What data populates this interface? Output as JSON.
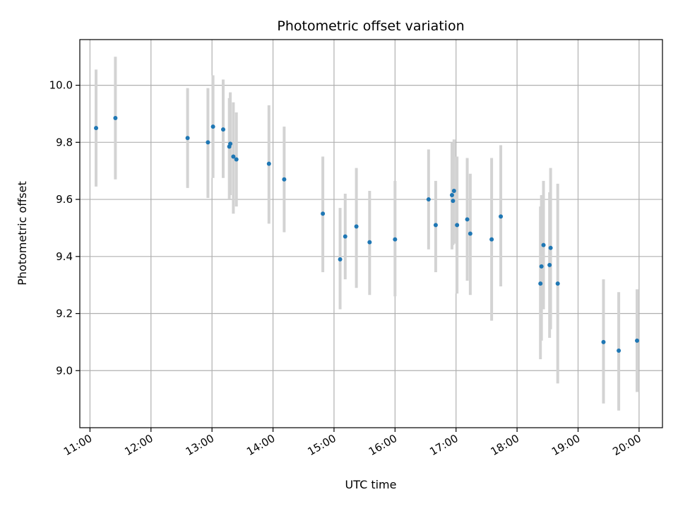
{
  "chart_data": {
    "type": "scatter",
    "title": "Photometric offset variation",
    "xlabel": "UTC time",
    "ylabel": "Photometric offset",
    "xlim": [
      "10:50",
      "20:23"
    ],
    "ylim": [
      8.8,
      10.16
    ],
    "grid": true,
    "x_ticks": [
      "11:00",
      "12:00",
      "13:00",
      "14:00",
      "15:00",
      "16:00",
      "17:00",
      "18:00",
      "19:00",
      "20:00"
    ],
    "y_ticks": [
      "9.0",
      "9.2",
      "9.4",
      "9.6",
      "9.8",
      "10.0"
    ],
    "colors": {
      "point": "#1f77b4",
      "errorbar": "#d3d3d3",
      "grid": "#b0b0b0"
    },
    "points": [
      {
        "x": "11:06",
        "y": 9.85,
        "err_low": 9.645,
        "err_high": 10.055
      },
      {
        "x": "11:25",
        "y": 9.885,
        "err_low": 9.67,
        "err_high": 10.1
      },
      {
        "x": "12:36",
        "y": 9.815,
        "err_low": 9.64,
        "err_high": 9.99
      },
      {
        "x": "12:56",
        "y": 9.8,
        "err_low": 9.605,
        "err_high": 9.99
      },
      {
        "x": "13:01",
        "y": 9.855,
        "err_low": 9.675,
        "err_high": 10.035
      },
      {
        "x": "13:11",
        "y": 9.845,
        "err_low": 9.675,
        "err_high": 10.02
      },
      {
        "x": "13:17",
        "y": 9.785,
        "err_low": 9.6,
        "err_high": 9.955
      },
      {
        "x": "13:18",
        "y": 9.795,
        "err_low": 9.615,
        "err_high": 9.975
      },
      {
        "x": "13:21",
        "y": 9.75,
        "err_low": 9.55,
        "err_high": 9.94
      },
      {
        "x": "13:24",
        "y": 9.74,
        "err_low": 9.575,
        "err_high": 9.905
      },
      {
        "x": "13:56",
        "y": 9.725,
        "err_low": 9.515,
        "err_high": 9.93
      },
      {
        "x": "14:11",
        "y": 9.67,
        "err_low": 9.485,
        "err_high": 9.855
      },
      {
        "x": "14:49",
        "y": 9.55,
        "err_low": 9.345,
        "err_high": 9.75
      },
      {
        "x": "15:06",
        "y": 9.39,
        "err_low": 9.215,
        "err_high": 9.57
      },
      {
        "x": "15:11",
        "y": 9.47,
        "err_low": 9.32,
        "err_high": 9.62
      },
      {
        "x": "15:22",
        "y": 9.505,
        "err_low": 9.29,
        "err_high": 9.71
      },
      {
        "x": "15:35",
        "y": 9.45,
        "err_low": 9.265,
        "err_high": 9.63
      },
      {
        "x": "16:00",
        "y": 9.46,
        "err_low": 9.26,
        "err_high": 9.665
      },
      {
        "x": "16:33",
        "y": 9.6,
        "err_low": 9.425,
        "err_high": 9.775
      },
      {
        "x": "16:40",
        "y": 9.51,
        "err_low": 9.345,
        "err_high": 9.665
      },
      {
        "x": "16:56",
        "y": 9.615,
        "err_low": 9.425,
        "err_high": 9.8
      },
      {
        "x": "16:57",
        "y": 9.595,
        "err_low": 9.44,
        "err_high": 9.75
      },
      {
        "x": "16:58",
        "y": 9.63,
        "err_low": 9.445,
        "err_high": 9.81
      },
      {
        "x": "17:01",
        "y": 9.51,
        "err_low": 9.27,
        "err_high": 9.75
      },
      {
        "x": "17:11",
        "y": 9.53,
        "err_low": 9.315,
        "err_high": 9.745
      },
      {
        "x": "17:14",
        "y": 9.48,
        "err_low": 9.265,
        "err_high": 9.69
      },
      {
        "x": "17:35",
        "y": 9.46,
        "err_low": 9.175,
        "err_high": 9.745
      },
      {
        "x": "17:44",
        "y": 9.54,
        "err_low": 9.295,
        "err_high": 9.79
      },
      {
        "x": "18:23",
        "y": 9.305,
        "err_low": 9.04,
        "err_high": 9.575
      },
      {
        "x": "18:24",
        "y": 9.365,
        "err_low": 9.105,
        "err_high": 9.615
      },
      {
        "x": "18:26",
        "y": 9.44,
        "err_low": 9.215,
        "err_high": 9.665
      },
      {
        "x": "18:32",
        "y": 9.37,
        "err_low": 9.115,
        "err_high": 9.625
      },
      {
        "x": "18:33",
        "y": 9.43,
        "err_low": 9.145,
        "err_high": 9.71
      },
      {
        "x": "18:40",
        "y": 9.305,
        "err_low": 8.955,
        "err_high": 9.655
      },
      {
        "x": "19:25",
        "y": 9.1,
        "err_low": 8.885,
        "err_high": 9.32
      },
      {
        "x": "19:40",
        "y": 9.07,
        "err_low": 8.86,
        "err_high": 9.275
      },
      {
        "x": "19:58",
        "y": 9.105,
        "err_low": 8.925,
        "err_high": 9.285
      }
    ]
  }
}
